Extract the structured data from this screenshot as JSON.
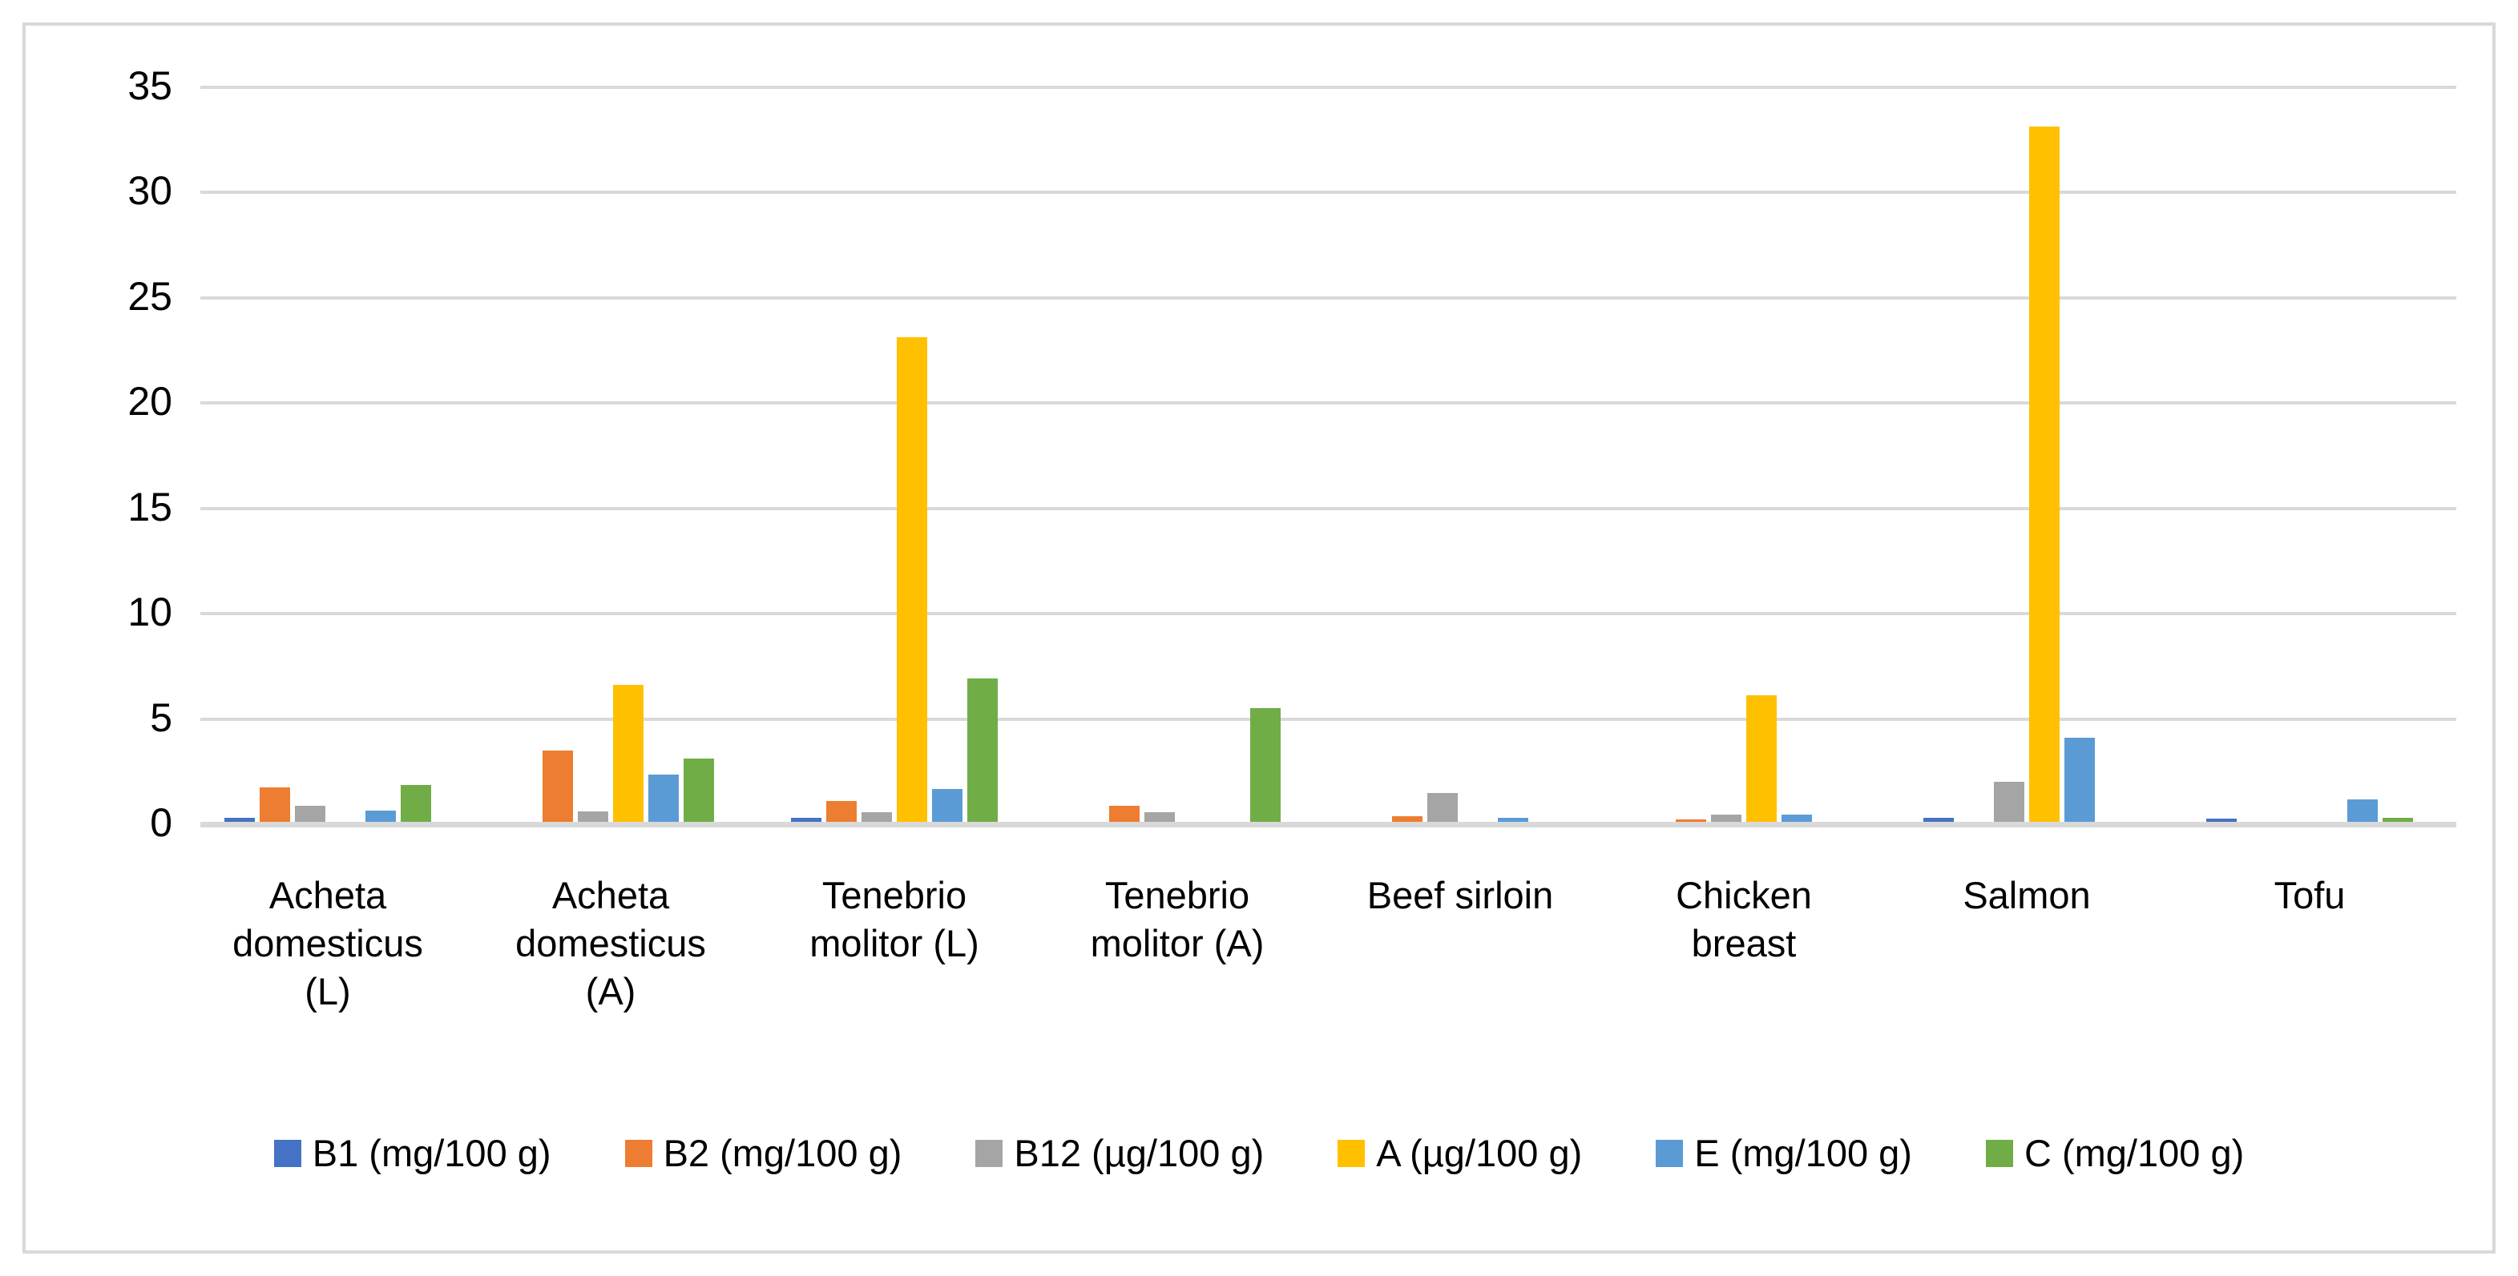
{
  "chart_data": {
    "type": "bar",
    "title": "",
    "categories": [
      "Acheta domesticus (L)",
      "Acheta domesticus (A)",
      "Tenebrio molitor (L)",
      "Tenebrio molitor (A)",
      "Beef sirloin",
      "Chicken breast",
      "Salmon",
      "Tofu"
    ],
    "series": [
      {
        "name": "B1 (mg/100 g)",
        "color": "#4472C4",
        "values": [
          0.2,
          0,
          0.2,
          0,
          0,
          0,
          0.2,
          0.15
        ]
      },
      {
        "name": "B2 (mg/100 g)",
        "color": "#ED7D31",
        "values": [
          1.65,
          3.4,
          1.0,
          0.75,
          0.25,
          0.1,
          0,
          0
        ]
      },
      {
        "name": "B12 (µg/100 g)",
        "color": "#A5A5A5",
        "values": [
          0.75,
          0.5,
          0.45,
          0.45,
          1.35,
          0.35,
          1.9,
          0
        ]
      },
      {
        "name": "A (µg/100 g)",
        "color": "#FFC000",
        "values": [
          0,
          6.5,
          23,
          0,
          0,
          6,
          33,
          0
        ]
      },
      {
        "name": "E (mg/100 g)",
        "color": "#5B9BD5",
        "values": [
          0.55,
          2.25,
          1.55,
          0,
          0.2,
          0.35,
          4,
          1.05
        ]
      },
      {
        "name": "C (mg/100 g)",
        "color": "#70AD47",
        "values": [
          1.75,
          3.0,
          6.8,
          5.4,
          0,
          0,
          0,
          0.2
        ]
      }
    ],
    "ylim": [
      0,
      35
    ],
    "yticks": [
      0,
      5,
      10,
      15,
      20,
      25,
      30,
      35
    ],
    "grid": true,
    "legend_position": "bottom"
  },
  "colors": {
    "background": "#FFFFFF",
    "gridline": "#D9D9D9",
    "axis": "#D9D9D9",
    "frame_border": "#D9D9D9",
    "text": "#000000"
  }
}
